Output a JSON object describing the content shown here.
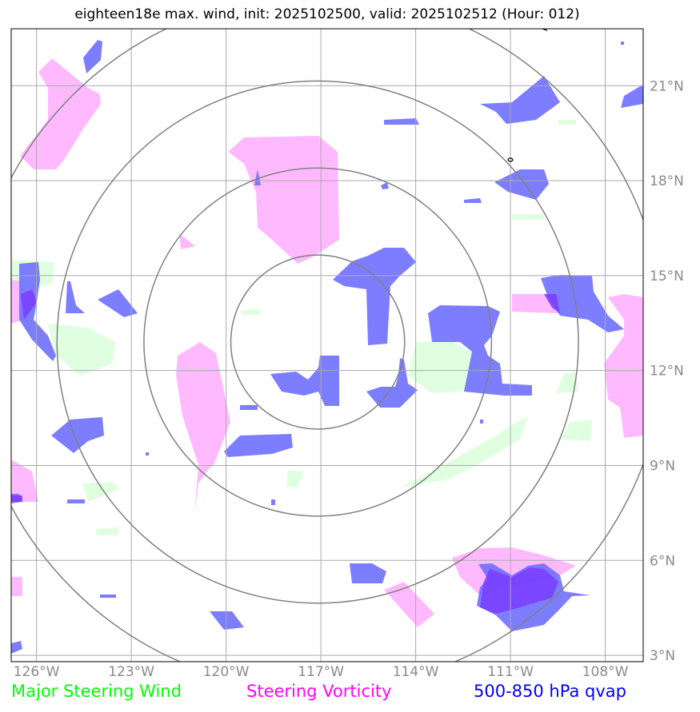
{
  "title": "eighteen18e max. wind, init: 2025102500, valid: 2025102512 (Hour: 012)",
  "map": {
    "lon_range": [
      -126.8,
      -106.8
    ],
    "lat_range": [
      2.8,
      22.8
    ],
    "lon_ticks": [
      -126,
      -123,
      -120,
      -117,
      -114,
      -111,
      -108
    ],
    "lon_labels": [
      "126°W",
      "123°W",
      "120°W",
      "117°W",
      "114°W",
      "111°W",
      "108°W"
    ],
    "lat_ticks": [
      3,
      6,
      9,
      12,
      15,
      18,
      21
    ],
    "lat_labels": [
      "3°N",
      "6°N",
      "9°N",
      "12°N",
      "15°N",
      "18°N",
      "21°N"
    ],
    "grid": true,
    "center": {
      "lon": -117.1,
      "lat": 12.9
    },
    "range_rings_deg": [
      2.75,
      5.5,
      8.25,
      11.0
    ]
  },
  "legend": {
    "steering_wind": "Major Steering Wind",
    "steering_vorticity": "Steering Vorticity",
    "qvap": "500-850 hPa qvap"
  },
  "colors": {
    "steering_wind": "#00ff00",
    "steering_vorticity": "#ff00ff",
    "qvap": "#0000ff",
    "wind_fill": "#ddffdd",
    "vort_fill": "#ffb3ff",
    "qvap_fill": "#6f6fff",
    "grid": "#a9a9a9",
    "rings": "#808080"
  }
}
